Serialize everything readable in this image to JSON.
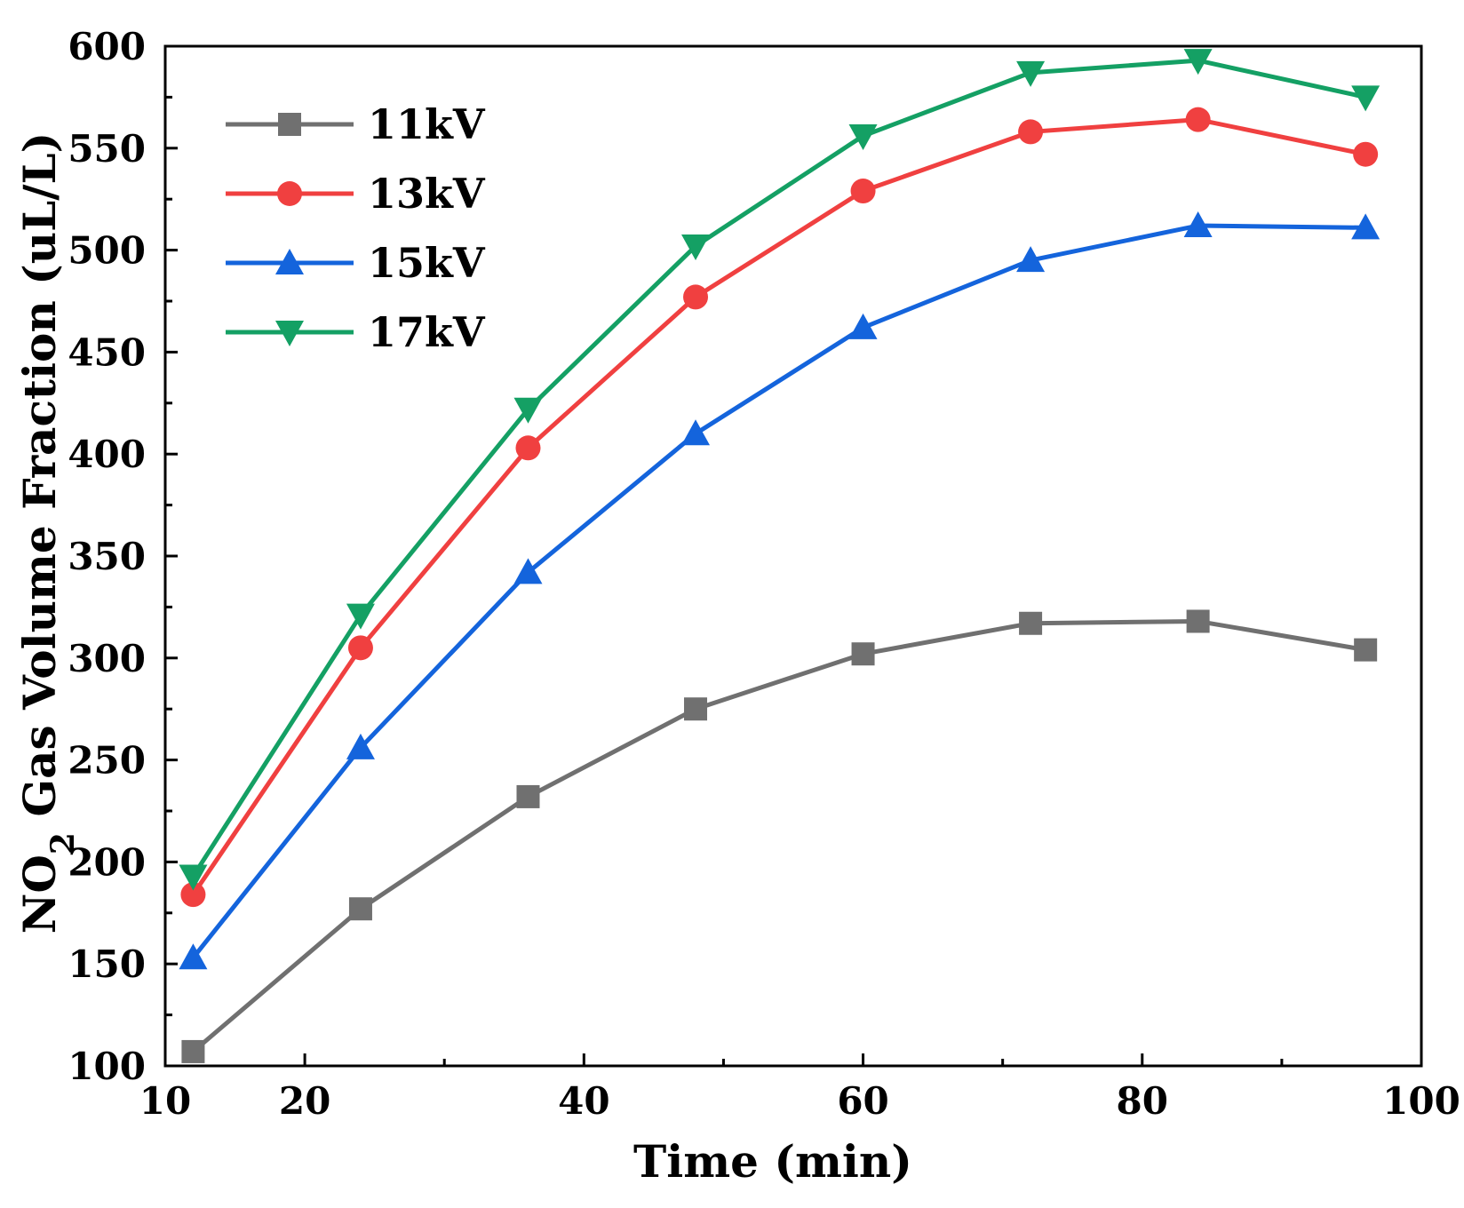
{
  "chart_data": {
    "type": "line",
    "title": "",
    "xlabel": "Time (min)",
    "ylabel_parts": {
      "pre": "NO",
      "sub": "2",
      "post": " Gas Volume Fraction (uL/L)"
    },
    "xlim": [
      10,
      100
    ],
    "ylim": [
      100,
      600
    ],
    "xticks": [
      10,
      20,
      40,
      60,
      80,
      100
    ],
    "xminor": [
      30,
      50,
      70,
      90
    ],
    "yticks": [
      100,
      150,
      200,
      250,
      300,
      350,
      400,
      450,
      500,
      550,
      600
    ],
    "grid": false,
    "legend_position": "top-left",
    "x": [
      12,
      24,
      36,
      48,
      60,
      72,
      84,
      96
    ],
    "series": [
      {
        "name": "11kV",
        "color": "#707070",
        "marker": "square",
        "values": [
          107,
          177,
          232,
          275,
          302,
          317,
          318,
          304
        ]
      },
      {
        "name": "13kV",
        "color": "#f04040",
        "marker": "circle",
        "values": [
          184,
          305,
          403,
          477,
          529,
          558,
          564,
          547
        ]
      },
      {
        "name": "15kV",
        "color": "#1464dc",
        "marker": "triangle-up",
        "values": [
          153,
          256,
          342,
          410,
          462,
          495,
          512,
          511
        ]
      },
      {
        "name": "17kV",
        "color": "#14a064",
        "marker": "triangle-down",
        "values": [
          193,
          321,
          422,
          502,
          556,
          587,
          593,
          575
        ]
      }
    ]
  }
}
